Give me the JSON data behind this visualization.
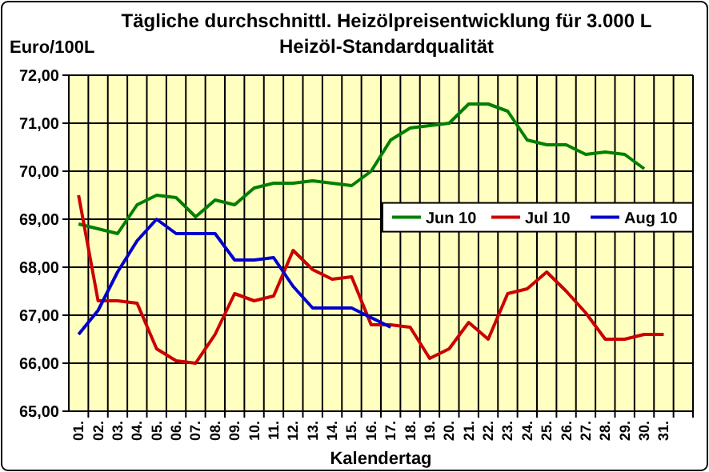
{
  "chart_data": {
    "type": "line",
    "title": "Tägliche durchschnittl. Heizölpreisentwicklung für 3.000 L",
    "subtitle": "Heizöl-Standardqualität",
    "ylabel": "Euro/100L",
    "xlabel": "Kalendertag",
    "categories": [
      "01.",
      "02.",
      "03.",
      "04.",
      "05.",
      "06.",
      "07.",
      "08.",
      "09.",
      "10.",
      "11.",
      "12.",
      "13.",
      "14.",
      "15.",
      "16.",
      "17.",
      "18.",
      "19.",
      "20.",
      "21.",
      "22.",
      "23.",
      "24.",
      "25.",
      "26.",
      "27.",
      "28.",
      "29.",
      "30.",
      "31.",
      null
    ],
    "series": [
      {
        "name": "Jun 10",
        "color": "#008000",
        "values": [
          68.9,
          68.8,
          68.7,
          69.3,
          69.5,
          69.45,
          69.05,
          69.4,
          69.3,
          69.65,
          69.75,
          69.75,
          69.8,
          69.75,
          69.7,
          70.0,
          70.65,
          70.9,
          70.95,
          71.0,
          71.4,
          71.4,
          71.25,
          70.65,
          70.55,
          70.55,
          70.35,
          70.4,
          70.35,
          70.05,
          null,
          null
        ]
      },
      {
        "name": "Jul 10",
        "color": "#cc0000",
        "values": [
          69.5,
          67.3,
          67.3,
          67.25,
          66.3,
          66.05,
          66.0,
          66.6,
          67.45,
          67.3,
          67.4,
          68.35,
          67.95,
          67.75,
          67.8,
          66.8,
          66.8,
          66.75,
          66.1,
          66.3,
          66.85,
          66.5,
          67.45,
          67.55,
          67.9,
          67.5,
          67.05,
          66.5,
          66.5,
          66.6,
          66.6,
          null
        ]
      },
      {
        "name": "Aug 10",
        "color": "#0000cc",
        "values": [
          66.6,
          67.1,
          67.9,
          68.55,
          69.0,
          68.7,
          68.7,
          68.7,
          68.15,
          68.15,
          68.2,
          67.6,
          67.15,
          67.15,
          67.15,
          66.95,
          66.75,
          null,
          null,
          null,
          null,
          null,
          null,
          null,
          null,
          null,
          null,
          null,
          null,
          null,
          null,
          null
        ]
      }
    ],
    "ylim": [
      65,
      72
    ],
    "yticks": [
      {
        "value": 65,
        "label": "65,00"
      },
      {
        "value": 66,
        "label": "66,00"
      },
      {
        "value": 67,
        "label": "67,00"
      },
      {
        "value": 68,
        "label": "68,00"
      },
      {
        "value": 69,
        "label": "69,00"
      },
      {
        "value": 70,
        "label": "70,00"
      },
      {
        "value": 71,
        "label": "71,00"
      },
      {
        "value": 72,
        "label": "72,00"
      }
    ],
    "grid": true,
    "legend": "right",
    "marker": "none",
    "line_style": "solid"
  }
}
